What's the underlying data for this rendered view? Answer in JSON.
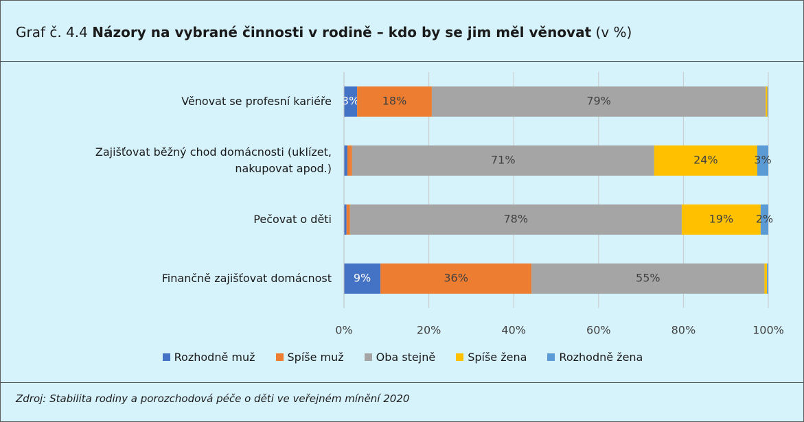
{
  "chart_data": {
    "type": "bar",
    "orientation": "horizontal",
    "stacked": true,
    "title": {
      "number": "Graf č. 4.4",
      "text": "Názory na vybrané činnosti v rodině – kdo by se jim měl věnovat",
      "unit": "(v %)"
    },
    "categories": [
      "Věnovat se profesní kariéře",
      "Zajišťovat běžný chod domácnosti (uklízet, nakupovat apod.)",
      "Pečovat o děti",
      "Finančně zajišťovat domácnost"
    ],
    "series": [
      {
        "name": "Rozhodně muž",
        "color": "#4472c4",
        "values": [
          3.1,
          0.8,
          0.6,
          8.6
        ],
        "value_labels": [
          "3%",
          null,
          null,
          "9%"
        ]
      },
      {
        "name": "Spíše muž",
        "color": "#ed7d31",
        "values": [
          17.6,
          1.1,
          0.8,
          35.6
        ],
        "value_labels": [
          "18%",
          null,
          null,
          "36%"
        ]
      },
      {
        "name": "Oba stejně",
        "color": "#a5a5a5",
        "values": [
          78.7,
          71.2,
          78.2,
          54.9
        ],
        "value_labels": [
          "79%",
          "71%",
          "78%",
          "55%"
        ]
      },
      {
        "name": "Spíše žena",
        "color": "#ffc000",
        "values": [
          0.4,
          24.3,
          18.6,
          0.6
        ],
        "value_labels": [
          null,
          "24%",
          "19%",
          null
        ]
      },
      {
        "name": "Rozhodně žena",
        "color": "#5b9bd5",
        "values": [
          0.2,
          2.6,
          1.8,
          0.3
        ],
        "value_labels": [
          null,
          "3%",
          "2%",
          null
        ]
      }
    ],
    "xlim": [
      0,
      100
    ],
    "xticks": [
      {
        "value": 0,
        "label": "0%"
      },
      {
        "value": 20,
        "label": "20%"
      },
      {
        "value": 40,
        "label": "40%"
      },
      {
        "value": 60,
        "label": "60%"
      },
      {
        "value": 80,
        "label": "80%"
      },
      {
        "value": 100,
        "label": "100%"
      }
    ],
    "grid": true,
    "legend": "bottom",
    "source": "Zdroj: Stabilita rodiny a porozchodová péče o děti ve veřejném mínění 2020"
  }
}
